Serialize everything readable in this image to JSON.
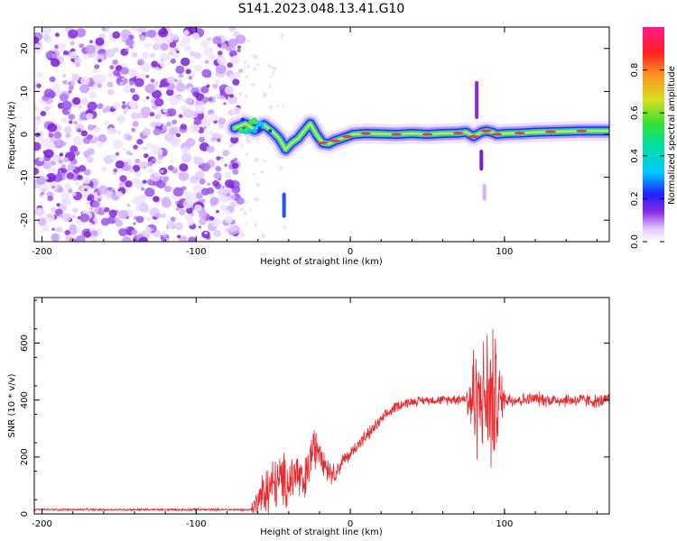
{
  "title": "S141.2023.048.13.41.G10",
  "colors": {
    "axis": "#000000",
    "snr_line": "#e8282d",
    "noise_purple": "#8a2be2",
    "track_core": "#ff3333"
  },
  "chart_data": [
    {
      "type": "heatmap",
      "title": "S141.2023.048.13.41.G10",
      "xlabel": "Height of straight line (km)",
      "ylabel": "Frequency (Hz)",
      "xlim": [
        -205,
        168
      ],
      "ylim": [
        -25,
        25
      ],
      "xticks": [
        -200,
        -100,
        0,
        100
      ],
      "xtick_labels": [
        "-200",
        "-100",
        "0",
        "100"
      ],
      "yticks": [
        -20,
        -10,
        0,
        10,
        20
      ],
      "ytick_labels": [
        "-20",
        "-10",
        "0",
        "10",
        "20"
      ],
      "noise_region_x": [
        -205,
        -73
      ],
      "track": {
        "x": [
          -75,
          -68,
          -62,
          -56,
          -50,
          -46,
          -42,
          -38,
          -34,
          -30,
          -26,
          -22,
          -18,
          -14,
          -10,
          -6,
          -2,
          2,
          10,
          20,
          30,
          40,
          50,
          60,
          70,
          75,
          80,
          85,
          88,
          92,
          95,
          100,
          110,
          120,
          130,
          140,
          150,
          160,
          168
        ],
        "freq": [
          1.5,
          2.5,
          1.0,
          2.2,
          0.5,
          -1.0,
          -3.5,
          -2.0,
          -1.0,
          0.8,
          2.5,
          0.0,
          -2.0,
          -2.2,
          -1.5,
          -1.0,
          -0.5,
          0.0,
          0.2,
          0.1,
          0.0,
          0.2,
          0.0,
          0.2,
          0.3,
          0.5,
          -0.5,
          0.5,
          0.8,
          0.5,
          0.0,
          0.2,
          0.3,
          0.5,
          0.6,
          0.7,
          0.8,
          0.8,
          0.8
        ]
      },
      "colorbar": {
        "label": "Normalized spectral amplitude",
        "range": [
          0,
          1
        ],
        "ticks": [
          0.0,
          0.2,
          0.4,
          0.6,
          0.8
        ],
        "tick_labels": [
          "0.0",
          "0.2",
          "0.4",
          "0.6",
          "0.8"
        ]
      }
    },
    {
      "type": "line",
      "xlabel": "Height of straight line (km)",
      "ylabel": "SNR (10 * v/v)",
      "xlim": [
        -205,
        168
      ],
      "ylim": [
        0,
        760
      ],
      "xticks": [
        -200,
        -100,
        0,
        100
      ],
      "xtick_labels": [
        "-200",
        "-100",
        "0",
        "100"
      ],
      "yticks": [
        0,
        200,
        400,
        600
      ],
      "ytick_labels": [
        "0",
        "200",
        "400",
        "600"
      ],
      "series": [
        {
          "name": "SNR",
          "x": [
            -205,
            -150,
            -100,
            -65,
            -60,
            -55,
            -50,
            -45,
            -40,
            -35,
            -30,
            -25,
            -20,
            -15,
            -10,
            -5,
            0,
            5,
            10,
            15,
            20,
            25,
            30,
            40,
            50,
            60,
            70,
            75,
            80,
            85,
            90,
            95,
            100,
            110,
            120,
            130,
            140,
            150,
            160,
            168
          ],
          "y": [
            15,
            15,
            15,
            15,
            40,
            80,
            100,
            120,
            110,
            150,
            90,
            220,
            240,
            160,
            140,
            185,
            210,
            245,
            270,
            300,
            330,
            355,
            380,
            395,
            400,
            400,
            405,
            405,
            400,
            410,
            400,
            400,
            405,
            400,
            405,
            400,
            400,
            400,
            395,
            400
          ],
          "spread": [
            5,
            5,
            5,
            5,
            80,
            110,
            120,
            110,
            130,
            120,
            110,
            100,
            80,
            60,
            40,
            35,
            30,
            30,
            30,
            30,
            25,
            25,
            25,
            20,
            20,
            20,
            25,
            25,
            280,
            200,
            360,
            260,
            40,
            30,
            30,
            30,
            30,
            30,
            30,
            30
          ]
        }
      ]
    }
  ]
}
